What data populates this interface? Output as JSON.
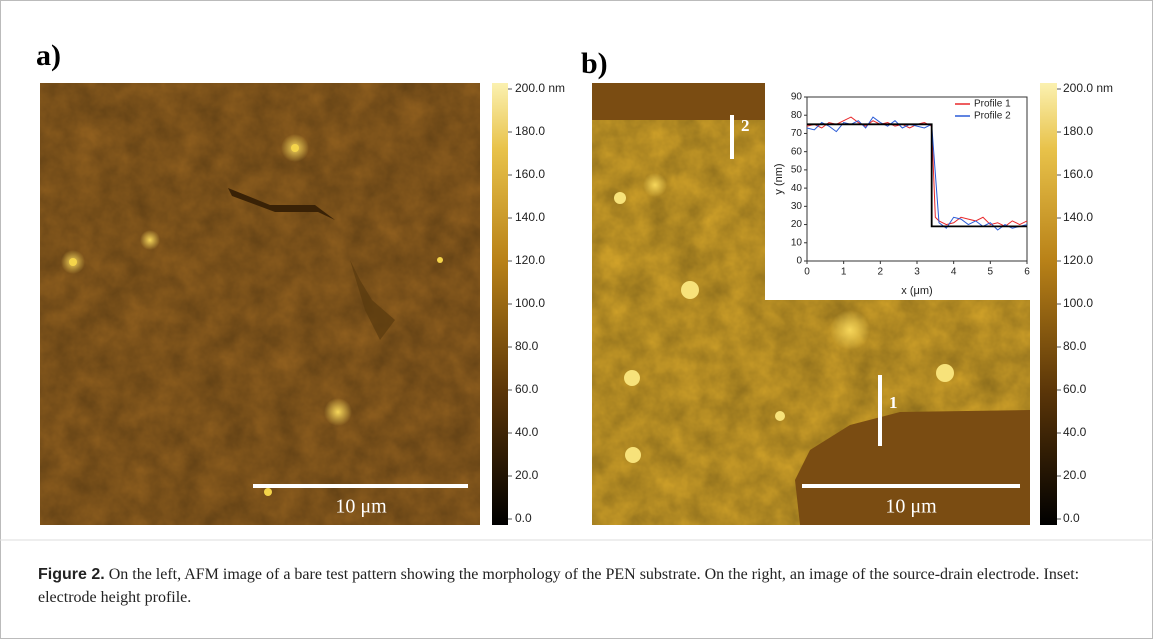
{
  "panels": [
    {
      "label": "a)",
      "scale_bar": "10 μm",
      "colorbar": {
        "lim": [
          0,
          200
        ],
        "ticks": [
          {
            "value": 200,
            "label": "200.0 nm"
          },
          {
            "value": 180,
            "label": "180.0"
          },
          {
            "value": 160,
            "label": "160.0"
          },
          {
            "value": 140,
            "label": "140.0"
          },
          {
            "value": 120,
            "label": "120.0"
          },
          {
            "value": 100,
            "label": "100.0"
          },
          {
            "value": 80,
            "label": "80.0"
          },
          {
            "value": 60,
            "label": "60.0"
          },
          {
            "value": 40,
            "label": "40.0"
          },
          {
            "value": 20,
            "label": "20.0"
          },
          {
            "value": 0,
            "label": "0.0"
          }
        ]
      }
    },
    {
      "label": "b)",
      "scale_bar": "10 μm",
      "profile_labels": [
        "2",
        "1"
      ],
      "colorbar": {
        "lim": [
          0,
          200
        ],
        "ticks": [
          {
            "value": 200,
            "label": "200.0 nm"
          },
          {
            "value": 180,
            "label": "180.0"
          },
          {
            "value": 160,
            "label": "160.0"
          },
          {
            "value": 140,
            "label": "140.0"
          },
          {
            "value": 120,
            "label": "120.0"
          },
          {
            "value": 100,
            "label": "100.0"
          },
          {
            "value": 80,
            "label": "80.0"
          },
          {
            "value": 60,
            "label": "60.0"
          },
          {
            "value": 40,
            "label": "40.0"
          },
          {
            "value": 20,
            "label": "20.0"
          },
          {
            "value": 0,
            "label": "0.0"
          }
        ]
      },
      "inset": {
        "type": "line",
        "x_label": "x (μm)",
        "y_label": "y (nm)",
        "xlim": [
          0,
          6
        ],
        "ylim": [
          0,
          90
        ],
        "xticks": [
          0,
          1,
          2,
          3,
          4,
          5,
          6
        ],
        "yticks": [
          0,
          10,
          20,
          30,
          40,
          50,
          60,
          70,
          80,
          90
        ],
        "x": [
          0,
          0.2,
          0.4,
          0.6,
          0.8,
          1.0,
          1.2,
          1.4,
          1.6,
          1.8,
          2.0,
          2.2,
          2.4,
          2.6,
          2.8,
          3.0,
          3.2,
          3.4,
          3.5,
          3.6,
          3.8,
          4.0,
          4.2,
          4.4,
          4.6,
          4.8,
          5.0,
          5.2,
          5.4,
          5.6,
          5.8,
          6.0
        ],
        "series": [
          {
            "name": "Profile 1",
            "color": "#e8282b",
            "values": [
              74,
              75,
              73,
              76,
              75,
              77,
              79,
              76,
              74,
              77,
              75,
              76,
              74,
              75,
              73,
              75,
              76,
              74,
              24,
              22,
              20,
              21,
              24,
              23,
              22,
              24,
              20,
              21,
              19,
              22,
              20,
              22
            ]
          },
          {
            "name": "Profile 2",
            "color": "#2a5bd7",
            "values": [
              73,
              72,
              76,
              74,
              71,
              76,
              75,
              77,
              73,
              79,
              76,
              74,
              77,
              73,
              75,
              74,
              73,
              75,
              48,
              21,
              18,
              24,
              23,
              20,
              22,
              19,
              21,
              17,
              20,
              18,
              19,
              20
            ]
          }
        ],
        "fit": {
          "color": "#000000",
          "x": [
            0,
            3.4,
            3.4,
            6
          ],
          "values": [
            75,
            75,
            19,
            19
          ]
        }
      }
    }
  ],
  "caption": {
    "label": "Figure 2.",
    "text": "On the left, AFM image of a bare test pattern showing the morphology of the PEN substrate. On the right, an image of the source-drain electrode. Inset: electrode height profile."
  }
}
